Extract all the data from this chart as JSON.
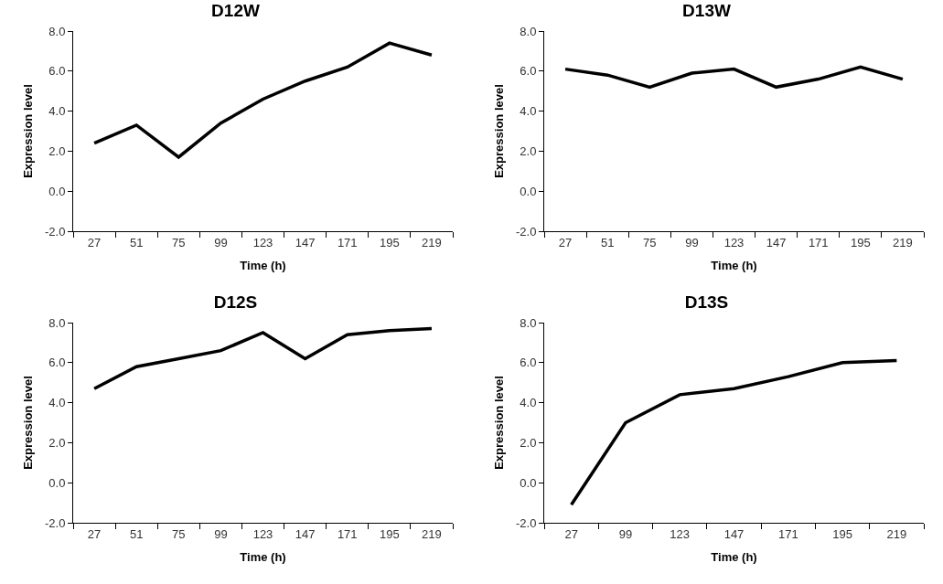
{
  "chart_data": [
    {
      "type": "line",
      "title": "D12W",
      "xlabel": "Time (h)",
      "ylabel": "Expression level",
      "categories": [
        "27",
        "51",
        "75",
        "99",
        "123",
        "147",
        "171",
        "195",
        "219"
      ],
      "series": [
        {
          "color": "#000000",
          "values": [
            2.4,
            3.3,
            1.7,
            3.4,
            4.6,
            5.5,
            6.2,
            7.4,
            6.8
          ]
        }
      ],
      "ylim": [
        -2,
        8
      ],
      "yticks": [
        {
          "value": -2,
          "label": "-2.0"
        },
        {
          "value": 0,
          "label": "0.0"
        },
        {
          "value": 2,
          "label": "2.0"
        },
        {
          "value": 4,
          "label": "4.0"
        },
        {
          "value": 6,
          "label": "6.0"
        },
        {
          "value": 8,
          "label": "8.0"
        }
      ],
      "grid": false
    },
    {
      "type": "line",
      "title": "D13W",
      "xlabel": "Time (h)",
      "ylabel": "Expression level",
      "categories": [
        "27",
        "51",
        "75",
        "99",
        "123",
        "147",
        "171",
        "195",
        "219"
      ],
      "series": [
        {
          "color": "#000000",
          "values": [
            6.1,
            5.8,
            5.2,
            5.9,
            6.1,
            5.2,
            5.6,
            6.2,
            5.6
          ]
        }
      ],
      "ylim": [
        -2,
        8
      ],
      "yticks": [
        {
          "value": -2,
          "label": "-2.0"
        },
        {
          "value": 0,
          "label": "0.0"
        },
        {
          "value": 2,
          "label": "2.0"
        },
        {
          "value": 4,
          "label": "4.0"
        },
        {
          "value": 6,
          "label": "6.0"
        },
        {
          "value": 8,
          "label": "8.0"
        }
      ],
      "grid": false
    },
    {
      "type": "line",
      "title": "D12S",
      "xlabel": "Time (h)",
      "ylabel": "Expression level",
      "categories": [
        "27",
        "51",
        "75",
        "99",
        "123",
        "147",
        "171",
        "195",
        "219"
      ],
      "series": [
        {
          "color": "#000000",
          "values": [
            4.7,
            5.8,
            6.2,
            6.6,
            7.5,
            6.2,
            7.4,
            7.6,
            7.7
          ]
        }
      ],
      "ylim": [
        -2,
        8
      ],
      "yticks": [
        {
          "value": -2,
          "label": "-2.0"
        },
        {
          "value": 0,
          "label": "0.0"
        },
        {
          "value": 2,
          "label": "2.0"
        },
        {
          "value": 4,
          "label": "4.0"
        },
        {
          "value": 6,
          "label": "6.0"
        },
        {
          "value": 8,
          "label": "8.0"
        }
      ],
      "grid": false
    },
    {
      "type": "line",
      "title": "D13S",
      "xlabel": "Time (h)",
      "ylabel": "Expression level",
      "categories": [
        "27",
        "99",
        "123",
        "147",
        "171",
        "195",
        "219"
      ],
      "series": [
        {
          "color": "#000000",
          "values": [
            -1.1,
            3.0,
            4.4,
            4.7,
            5.3,
            6.0,
            6.1
          ]
        }
      ],
      "ylim": [
        -2,
        8
      ],
      "yticks": [
        {
          "value": -2,
          "label": "-2.0"
        },
        {
          "value": 0,
          "label": "0.0"
        },
        {
          "value": 2,
          "label": "2.0"
        },
        {
          "value": 4,
          "label": "4.0"
        },
        {
          "value": 6,
          "label": "6.0"
        },
        {
          "value": 8,
          "label": "8.0"
        }
      ],
      "grid": false
    }
  ]
}
